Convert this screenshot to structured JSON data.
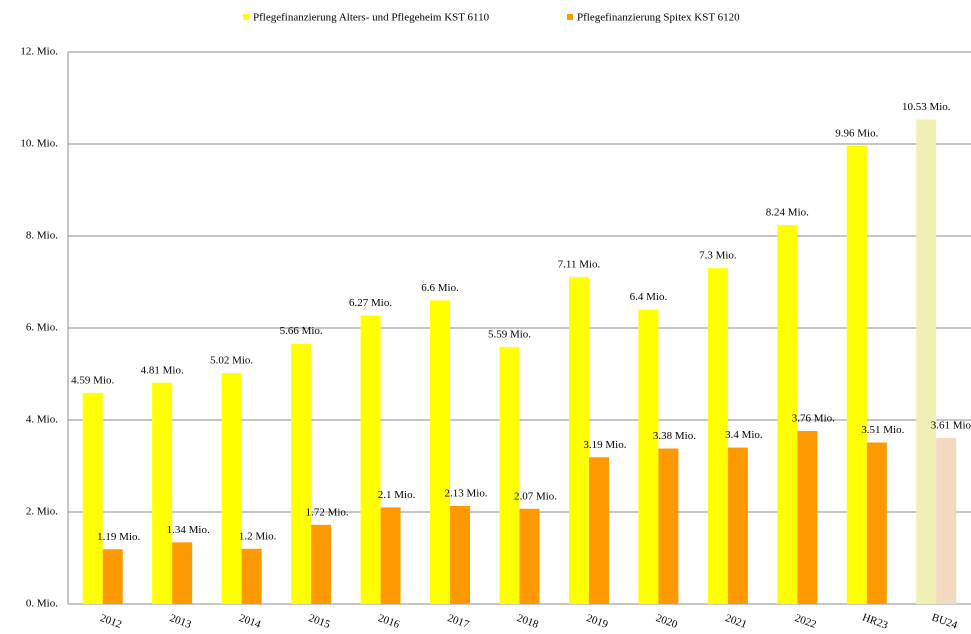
{
  "chart_data": {
    "type": "bar",
    "categories": [
      "2012",
      "2013",
      "2014",
      "2015",
      "2016",
      "2017",
      "2018",
      "2019",
      "2020",
      "2021",
      "2022",
      "HR23",
      "BU24"
    ],
    "series": [
      {
        "name": "Pflegefinanzierung Alters- und Pflegeheim KST 6110",
        "color": "#ffff00",
        "colors": [
          "#ffff00",
          "#ffff00",
          "#ffff00",
          "#ffff00",
          "#ffff00",
          "#ffff00",
          "#ffff00",
          "#ffff00",
          "#ffff00",
          "#ffff00",
          "#ffff00",
          "#ffff00",
          "#f0f0b4"
        ],
        "values": [
          4.59,
          4.81,
          5.02,
          5.66,
          6.27,
          6.6,
          5.59,
          7.11,
          6.4,
          7.3,
          8.24,
          9.96,
          10.53
        ],
        "value_labels": [
          "4.59 Mio.",
          "4.81 Mio.",
          "5.02 Mio.",
          "5.66 Mio.",
          "6.27 Mio.",
          "6.6 Mio.",
          "5.59 Mio.",
          "7.11 Mio.",
          "6.4 Mio.",
          "7.3 Mio.",
          "8.24 Mio.",
          "9.96 Mio.",
          "10.53 Mio."
        ]
      },
      {
        "name": "Pflegefinanzierung Spitex KST 6120",
        "color": "#ff9900",
        "colors": [
          "#ff9900",
          "#ff9900",
          "#ff9900",
          "#ff9900",
          "#ff9900",
          "#ff9900",
          "#ff9900",
          "#ff9900",
          "#ff9900",
          "#ff9900",
          "#ff9900",
          "#ff9900",
          "#f2d9bf"
        ],
        "values": [
          1.19,
          1.34,
          1.2,
          1.72,
          2.1,
          2.13,
          2.07,
          3.19,
          3.38,
          3.4,
          3.76,
          3.51,
          3.61
        ],
        "value_labels": [
          "1.19 Mio.",
          "1.34 Mio.",
          "1.2 Mio.",
          "1.72 Mio.",
          "2.1 Mio.",
          "2.13 Mio.",
          "2.07 Mio.",
          "3.19 Mio.",
          "3.38 Mio.",
          "3.4 Mio.",
          "3.76 Mio.",
          "3.51 Mio.",
          "3.61 Mio."
        ]
      }
    ],
    "ylim": [
      0,
      12
    ],
    "yticks": [
      {
        "value": 0,
        "label": "0. Mio."
      },
      {
        "value": 2,
        "label": "2. Mio."
      },
      {
        "value": 4,
        "label": "4. Mio."
      },
      {
        "value": 6,
        "label": "6. Mio."
      },
      {
        "value": 8,
        "label": "8. Mio."
      },
      {
        "value": 10,
        "label": "10. Mio."
      },
      {
        "value": 12,
        "label": "12. Mio."
      }
    ],
    "grid": true,
    "legend": "top"
  }
}
